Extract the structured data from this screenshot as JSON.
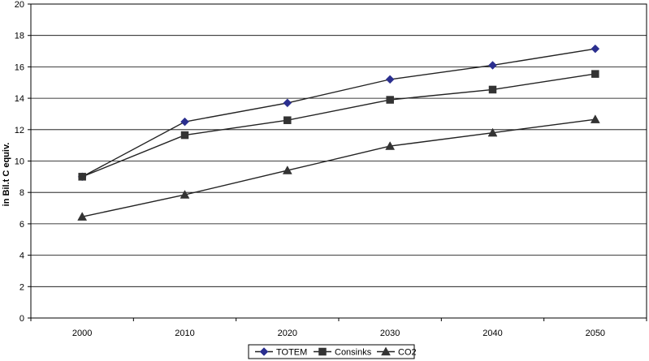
{
  "chart_data": {
    "type": "line",
    "title": "",
    "xlabel": "",
    "ylabel": "in Bil.t C equiv.",
    "categories": [
      "2000",
      "2010",
      "2020",
      "2030",
      "2040",
      "2050"
    ],
    "ylim": [
      0,
      20
    ],
    "yticks": [
      "0",
      "2",
      "4",
      "6",
      "8",
      "10",
      "12",
      "14",
      "16",
      "18",
      "20"
    ],
    "grid": true,
    "legend_position": "bottom",
    "series": [
      {
        "name": "TOTEM",
        "marker": "diamond",
        "color": "#2b2f8f",
        "values": [
          9.0,
          12.5,
          13.7,
          15.2,
          16.1,
          17.15
        ]
      },
      {
        "name": "Consinks",
        "marker": "square",
        "color": "#333333",
        "values": [
          9.0,
          11.65,
          12.6,
          13.9,
          14.55,
          15.55
        ]
      },
      {
        "name": "CO2",
        "marker": "triangle",
        "color": "#333333",
        "values": [
          6.45,
          7.85,
          9.4,
          10.95,
          11.8,
          12.65
        ]
      }
    ]
  }
}
